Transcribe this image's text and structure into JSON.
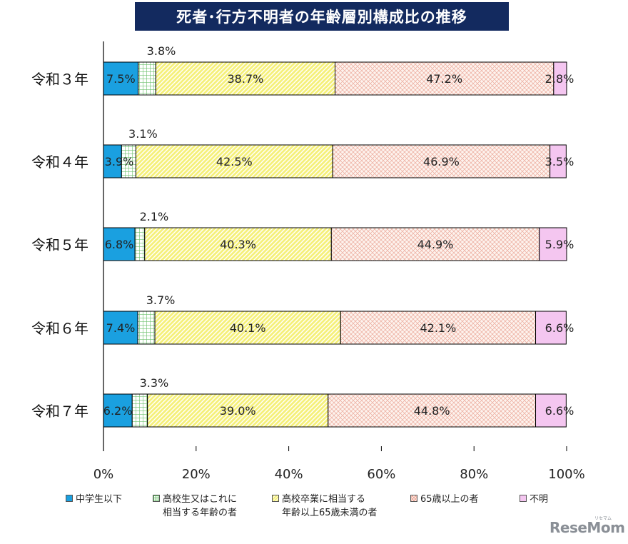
{
  "chart_data": {
    "type": "bar",
    "orientation": "horizontal",
    "stacked": true,
    "title": "死者･行方不明者の年齢層別構成比の推移",
    "categories": [
      "令和３年",
      "令和４年",
      "令和５年",
      "令和６年",
      "令和７年"
    ],
    "xlim": [
      0,
      100
    ],
    "x_ticks": [
      "0%",
      "20%",
      "40%",
      "60%",
      "80%",
      "100%"
    ],
    "grid": false,
    "legend_position": "bottom",
    "series": [
      {
        "name": "中学生以下",
        "color": "#1aa0e0",
        "pattern": "solid",
        "values": [
          7.5,
          3.9,
          6.8,
          7.4,
          6.2
        ],
        "labels": [
          "7.5%",
          "3.9%",
          "6.8%",
          "7.4%",
          "6.2%"
        ]
      },
      {
        "name": "高校生又はこれに\n相当する年齢の者",
        "color": "#8fd18f",
        "pattern": "grid",
        "values": [
          3.8,
          3.1,
          2.1,
          3.7,
          3.3
        ],
        "labels": [
          "3.8%",
          "3.1%",
          "2.1%",
          "3.7%",
          "3.3%"
        ]
      },
      {
        "name": "高校卒業に相当する\n年齢以上65歳未満の者",
        "color": "#f5f07a",
        "pattern": "diagonal",
        "values": [
          38.7,
          42.5,
          40.3,
          40.1,
          39.0
        ],
        "labels": [
          "38.7%",
          "42.5%",
          "40.3%",
          "40.1%",
          "39.0%"
        ]
      },
      {
        "name": "65歳以上の者",
        "color": "#f6c8b8",
        "pattern": "crosshatch",
        "values": [
          47.2,
          46.9,
          44.9,
          42.1,
          44.8
        ],
        "labels": [
          "47.2%",
          "46.9%",
          "44.9%",
          "42.1%",
          "44.8%"
        ]
      },
      {
        "name": "不明",
        "color": "#f4c6f0",
        "pattern": "solid",
        "values": [
          2.8,
          3.5,
          5.9,
          6.6,
          6.6
        ],
        "labels": [
          "2.8%",
          "3.5%",
          "5.9%",
          "6.6%",
          "6.6%"
        ]
      }
    ]
  },
  "logo": {
    "text": "ReseMom",
    "sub": "リセマム"
  }
}
